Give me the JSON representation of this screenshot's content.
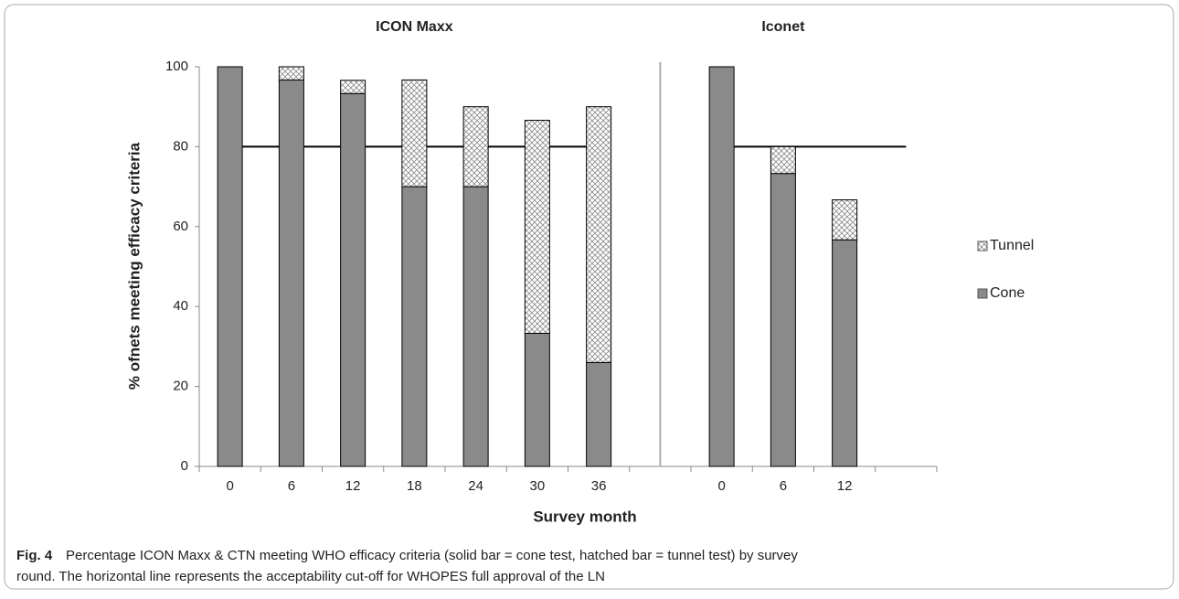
{
  "chart_data": {
    "type": "stacked_bar",
    "panels": [
      {
        "title": "ICON Maxx",
        "range": [
          0,
          6
        ]
      },
      {
        "title": "Iconet",
        "range": [
          8,
          11
        ]
      }
    ],
    "categories": [
      "0",
      "6",
      "12",
      "18",
      "24",
      "30",
      "36",
      null,
      "0",
      "6",
      "12",
      null
    ],
    "series": [
      {
        "name": "Cone",
        "color": "#8a8a8a",
        "values": [
          100,
          96.7,
          93.3,
          70,
          70,
          33.3,
          26,
          null,
          100,
          73.3,
          56.7,
          null
        ]
      },
      {
        "name": "Tunnel",
        "color": "#8a8a8a",
        "hatch": true,
        "values": [
          0,
          3.3,
          3.3,
          26.7,
          20,
          53.3,
          64,
          null,
          0,
          6.7,
          10,
          null
        ]
      }
    ],
    "reference_value": 80,
    "ylim": [
      0,
      100
    ],
    "yticks": [
      0,
      20,
      40,
      60,
      80,
      100
    ],
    "grid": false,
    "y_label": "% ofnets meeting efficacy criteria",
    "x_label": "Survey month",
    "legend": "right"
  },
  "caption": {
    "label": "Fig. 4",
    "text": "Percentage ICON Maxx & CTN meeting WHO efficacy criteria (solid bar = cone test, hatched bar = tunnel test) by survey round. The horizontal line represents the acceptability cut-off for WHOPES full approval of the LN"
  }
}
